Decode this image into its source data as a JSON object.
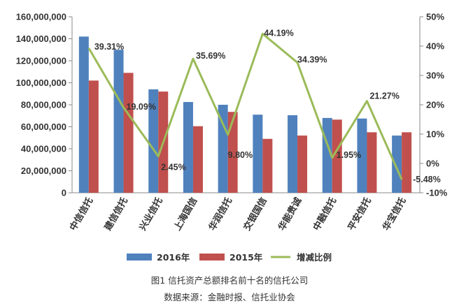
{
  "chart_data": {
    "type": "bar",
    "categories": [
      "中信信托",
      "建信信托",
      "兴业信托",
      "上海国信",
      "华润信托",
      "交银国信",
      "华能贵诚",
      "中融信托",
      "平安信托",
      "华宝信托"
    ],
    "series": [
      {
        "name": "2016年",
        "color": "#4f81bd",
        "axis": "left",
        "values": [
          142000000,
          130000000,
          94000000,
          82500000,
          80000000,
          71000000,
          70500000,
          68000000,
          67500000,
          52000000
        ]
      },
      {
        "name": "2015年",
        "color": "#c0504d",
        "axis": "left",
        "values": [
          102000000,
          109000000,
          92000000,
          60500000,
          73500000,
          49000000,
          52000000,
          66500000,
          55000000,
          55000000
        ]
      },
      {
        "name": "增减比例",
        "type": "line",
        "color": "#9bbb59",
        "axis": "right",
        "values": [
          39.31,
          19.09,
          2.45,
          35.69,
          9.8,
          44.19,
          34.39,
          1.95,
          21.27,
          -5.48
        ],
        "labels": [
          "39.31%",
          "19.09%",
          "2.45%",
          "35.69%",
          "9.80%",
          "44.19%",
          "34.39%",
          "1.95%",
          "21.27%",
          "-5.48%"
        ]
      }
    ],
    "y_left": {
      "ylim": [
        0,
        160000000
      ],
      "ticks": [
        0,
        20000000,
        40000000,
        60000000,
        80000000,
        100000000,
        120000000,
        140000000,
        160000000
      ],
      "tick_labels": [
        "0",
        "20,000,000",
        "40,000,000",
        "60,000,000",
        "80,000,000",
        "100,000,000",
        "120,000,000",
        "140,000,000",
        "160,000,000"
      ]
    },
    "y_right": {
      "ylim": [
        -10,
        50
      ],
      "ticks": [
        -10,
        0,
        10,
        20,
        30,
        40,
        50
      ],
      "tick_labels": [
        "-10%",
        "0%",
        "10%",
        "20%",
        "30%",
        "40%",
        "50%"
      ]
    },
    "legend": [
      "2016年",
      "2015年",
      "增减比例"
    ],
    "legend_position": "bottom",
    "grid": false
  },
  "caption": {
    "title": "图1 信托资产总额排名前十名的信托公司",
    "source": "数据来源：金融时报、信托业协会"
  }
}
